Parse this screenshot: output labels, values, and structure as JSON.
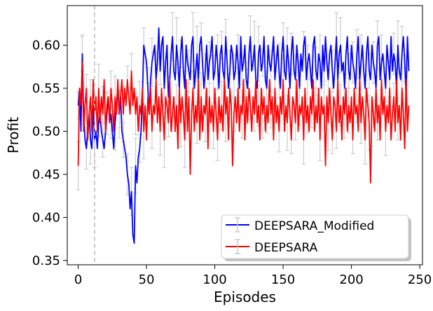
{
  "chart_data": {
    "type": "line",
    "title": "",
    "xlabel": "Episodes",
    "ylabel": "Profit",
    "xlim": [
      -8,
      252
    ],
    "ylim": [
      0.345,
      0.646
    ],
    "x_ticks": [
      0,
      50,
      100,
      150,
      200,
      250
    ],
    "x_tick_labels": [
      "0",
      "50",
      "100",
      "150",
      "200",
      "250"
    ],
    "y_ticks": [
      0.35,
      0.4,
      0.45,
      0.5,
      0.55,
      0.6
    ],
    "y_tick_labels": [
      "0.35",
      "0.40",
      "0.45",
      "0.50",
      "0.55",
      "0.60"
    ],
    "grid": false,
    "legend_position": "lower-right",
    "error_bar_color": "#cccccc",
    "vline": {
      "x": 12,
      "color": "#bbbbbb",
      "style": "dashed"
    },
    "series": [
      {
        "name": "DEEPSARA_Modified",
        "color": "#0000ff",
        "values": [
          0.53,
          0.55,
          0.5,
          0.59,
          0.52,
          0.49,
          0.48,
          0.5,
          0.52,
          0.49,
          0.48,
          0.53,
          0.49,
          0.5,
          0.48,
          0.51,
          0.52,
          0.5,
          0.49,
          0.48,
          0.5,
          0.52,
          0.54,
          0.51,
          0.52,
          0.5,
          0.48,
          0.51,
          0.53,
          0.55,
          0.52,
          0.54,
          0.5,
          0.49,
          0.48,
          0.47,
          0.45,
          0.44,
          0.41,
          0.43,
          0.38,
          0.37,
          0.46,
          0.44,
          0.47,
          0.48,
          0.5,
          0.54,
          0.6,
          0.59,
          0.58,
          0.55,
          0.52,
          0.56,
          0.58,
          0.59,
          0.6,
          0.56,
          0.58,
          0.62,
          0.57,
          0.6,
          0.61,
          0.55,
          0.58,
          0.6,
          0.54,
          0.56,
          0.59,
          0.61,
          0.57,
          0.56,
          0.6,
          0.58,
          0.55,
          0.59,
          0.61,
          0.57,
          0.55,
          0.6,
          0.58,
          0.57,
          0.56,
          0.6,
          0.61,
          0.55,
          0.57,
          0.59,
          0.56,
          0.6,
          0.61,
          0.58,
          0.55,
          0.57,
          0.6,
          0.56,
          0.58,
          0.59,
          0.61,
          0.56,
          0.57,
          0.6,
          0.58,
          0.55,
          0.59,
          0.6,
          0.57,
          0.56,
          0.61,
          0.58,
          0.55,
          0.57,
          0.6,
          0.59,
          0.56,
          0.57,
          0.6,
          0.58,
          0.55,
          0.61,
          0.57,
          0.58,
          0.6,
          0.56,
          0.55,
          0.59,
          0.61,
          0.57,
          0.58,
          0.6,
          0.56,
          0.55,
          0.59,
          0.6,
          0.57,
          0.58,
          0.61,
          0.56,
          0.55,
          0.6,
          0.58,
          0.57,
          0.59,
          0.61,
          0.56,
          0.58,
          0.6,
          0.57,
          0.55,
          0.59,
          0.61,
          0.57,
          0.56,
          0.6,
          0.58,
          0.55,
          0.59,
          0.61,
          0.57,
          0.56,
          0.6,
          0.58,
          0.55,
          0.59,
          0.57,
          0.6,
          0.61,
          0.56,
          0.58,
          0.59,
          0.57,
          0.55,
          0.6,
          0.61,
          0.57,
          0.56,
          0.59,
          0.58,
          0.55,
          0.6,
          0.57,
          0.61,
          0.58,
          0.56,
          0.59,
          0.6,
          0.57,
          0.55,
          0.58,
          0.61,
          0.56,
          0.59,
          0.6,
          0.57,
          0.58,
          0.55,
          0.59,
          0.61,
          0.57,
          0.56,
          0.6,
          0.58,
          0.57,
          0.55,
          0.59,
          0.61,
          0.56,
          0.58,
          0.6,
          0.57,
          0.55,
          0.59,
          0.61,
          0.57,
          0.56,
          0.6,
          0.58,
          0.57,
          0.55,
          0.6,
          0.61,
          0.56,
          0.58,
          0.59,
          0.57,
          0.55,
          0.6,
          0.58,
          0.56,
          0.61,
          0.57,
          0.59,
          0.58,
          0.55,
          0.6,
          0.57,
          0.56,
          0.59,
          0.61,
          0.58,
          0.54,
          0.61,
          0.57
        ]
      },
      {
        "name": "DEEPSARA",
        "color": "#ff0000",
        "values": [
          0.46,
          0.55,
          0.53,
          0.58,
          0.5,
          0.53,
          0.55,
          0.49,
          0.52,
          0.54,
          0.5,
          0.56,
          0.52,
          0.54,
          0.5,
          0.55,
          0.51,
          0.54,
          0.52,
          0.56,
          0.5,
          0.53,
          0.54,
          0.51,
          0.55,
          0.53,
          0.5,
          0.54,
          0.52,
          0.56,
          0.52,
          0.54,
          0.56,
          0.52,
          0.55,
          0.53,
          0.56,
          0.54,
          0.52,
          0.57,
          0.53,
          0.55,
          0.52,
          0.54,
          0.5,
          0.53,
          0.52,
          0.55,
          0.5,
          0.53,
          0.49,
          0.54,
          0.52,
          0.55,
          0.5,
          0.53,
          0.52,
          0.56,
          0.51,
          0.54,
          0.5,
          0.55,
          0.52,
          0.49,
          0.54,
          0.53,
          0.51,
          0.56,
          0.5,
          0.52,
          0.54,
          0.5,
          0.53,
          0.48,
          0.55,
          0.51,
          0.54,
          0.52,
          0.49,
          0.56,
          0.5,
          0.54,
          0.45,
          0.52,
          0.55,
          0.5,
          0.53,
          0.51,
          0.56,
          0.49,
          0.54,
          0.5,
          0.53,
          0.52,
          0.55,
          0.48,
          0.54,
          0.51,
          0.53,
          0.5,
          0.55,
          0.52,
          0.49,
          0.54,
          0.51,
          0.53,
          0.5,
          0.56,
          0.52,
          0.54,
          0.49,
          0.55,
          0.53,
          0.46,
          0.52,
          0.54,
          0.51,
          0.55,
          0.5,
          0.53,
          0.52,
          0.56,
          0.49,
          0.54,
          0.51,
          0.55,
          0.53,
          0.5,
          0.54,
          0.52,
          0.56,
          0.51,
          0.53,
          0.49,
          0.55,
          0.52,
          0.54,
          0.5,
          0.53,
          0.51,
          0.56,
          0.52,
          0.54,
          0.49,
          0.55,
          0.51,
          0.53,
          0.5,
          0.54,
          0.52,
          0.56,
          0.5,
          0.53,
          0.51,
          0.55,
          0.52,
          0.49,
          0.54,
          0.53,
          0.51,
          0.56,
          0.5,
          0.53,
          0.52,
          0.54,
          0.49,
          0.55,
          0.51,
          0.53,
          0.5,
          0.54,
          0.52,
          0.56,
          0.5,
          0.53,
          0.51,
          0.55,
          0.49,
          0.54,
          0.52,
          0.53,
          0.46,
          0.54,
          0.51,
          0.55,
          0.52,
          0.49,
          0.54,
          0.53,
          0.5,
          0.56,
          0.51,
          0.53,
          0.49,
          0.54,
          0.52,
          0.55,
          0.5,
          0.53,
          0.51,
          0.54,
          0.49,
          0.55,
          0.52,
          0.53,
          0.5,
          0.56,
          0.51,
          0.54,
          0.52,
          0.49,
          0.55,
          0.53,
          0.51,
          0.44,
          0.54,
          0.52,
          0.5,
          0.55,
          0.51,
          0.53,
          0.49,
          0.56,
          0.52,
          0.54,
          0.5,
          0.53,
          0.51,
          0.55,
          0.49,
          0.52,
          0.54,
          0.5,
          0.56,
          0.51,
          0.53,
          0.49,
          0.55,
          0.52,
          0.48,
          0.56,
          0.5,
          0.53
        ]
      }
    ]
  }
}
